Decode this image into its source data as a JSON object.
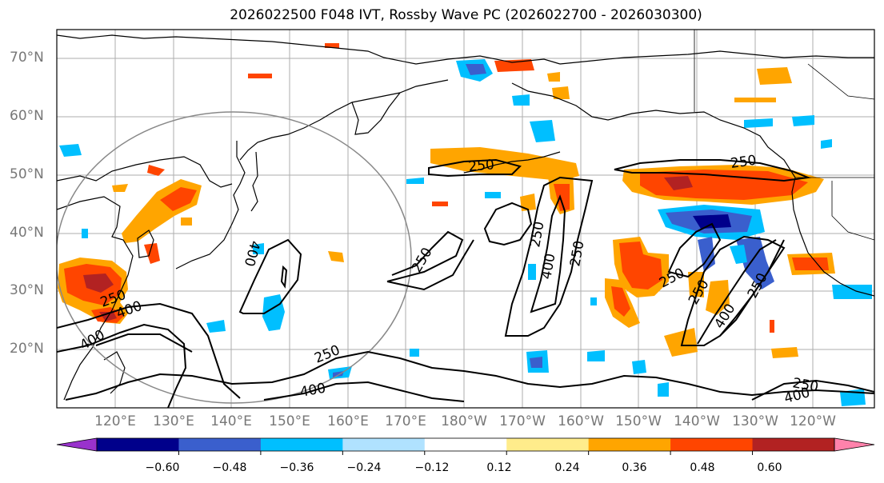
{
  "title": "2026022500 F048 IVT, Rossby Wave PC (2026022700 - 2026030300)",
  "lat_labels": [
    "70°N",
    "60°N",
    "50°N",
    "40°N",
    "30°N",
    "20°N"
  ],
  "lon_labels": [
    "120°E",
    "130°E",
    "140°E",
    "150°E",
    "160°E",
    "170°E",
    "180°W",
    "170°W",
    "160°W",
    "150°W",
    "140°W",
    "130°W",
    "120°W"
  ],
  "contour_labels": [
    "250",
    "250",
    "250",
    "250",
    "250",
    "250",
    "250",
    "250",
    "250",
    "250",
    "400",
    "400",
    "400",
    "400",
    "400",
    "400",
    "250",
    "400"
  ],
  "colorbar": {
    "colors": [
      "#9932cc",
      "#00008b",
      "#3a5fcd",
      "#00bfff",
      "#b0e2ff",
      "#ffffff",
      "#ffec8b",
      "#ffa500",
      "#ff4500",
      "#b22222",
      "#ff82ab"
    ],
    "tick_labels": [
      "−0.60",
      "−0.48",
      "−0.36",
      "−0.24",
      "−0.12",
      "0.12",
      "0.24",
      "0.36",
      "0.48",
      "0.60"
    ]
  }
}
